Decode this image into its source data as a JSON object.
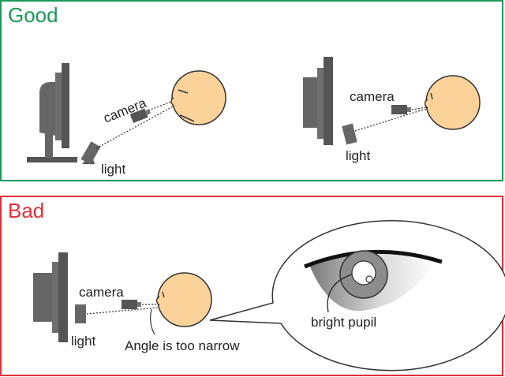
{
  "panels": {
    "good": {
      "title": "Good",
      "color": "#1a9a5a"
    },
    "bad": {
      "title": "Bad",
      "color": "#e0303a"
    }
  },
  "labels": {
    "camera": "camera",
    "light": "light",
    "angle_note": "Angle is too narrow",
    "bright_pupil": "bright pupil"
  },
  "colors": {
    "skin": "#fbd29a",
    "device_dark": "#555555",
    "device_mid": "#6e6e6e"
  }
}
